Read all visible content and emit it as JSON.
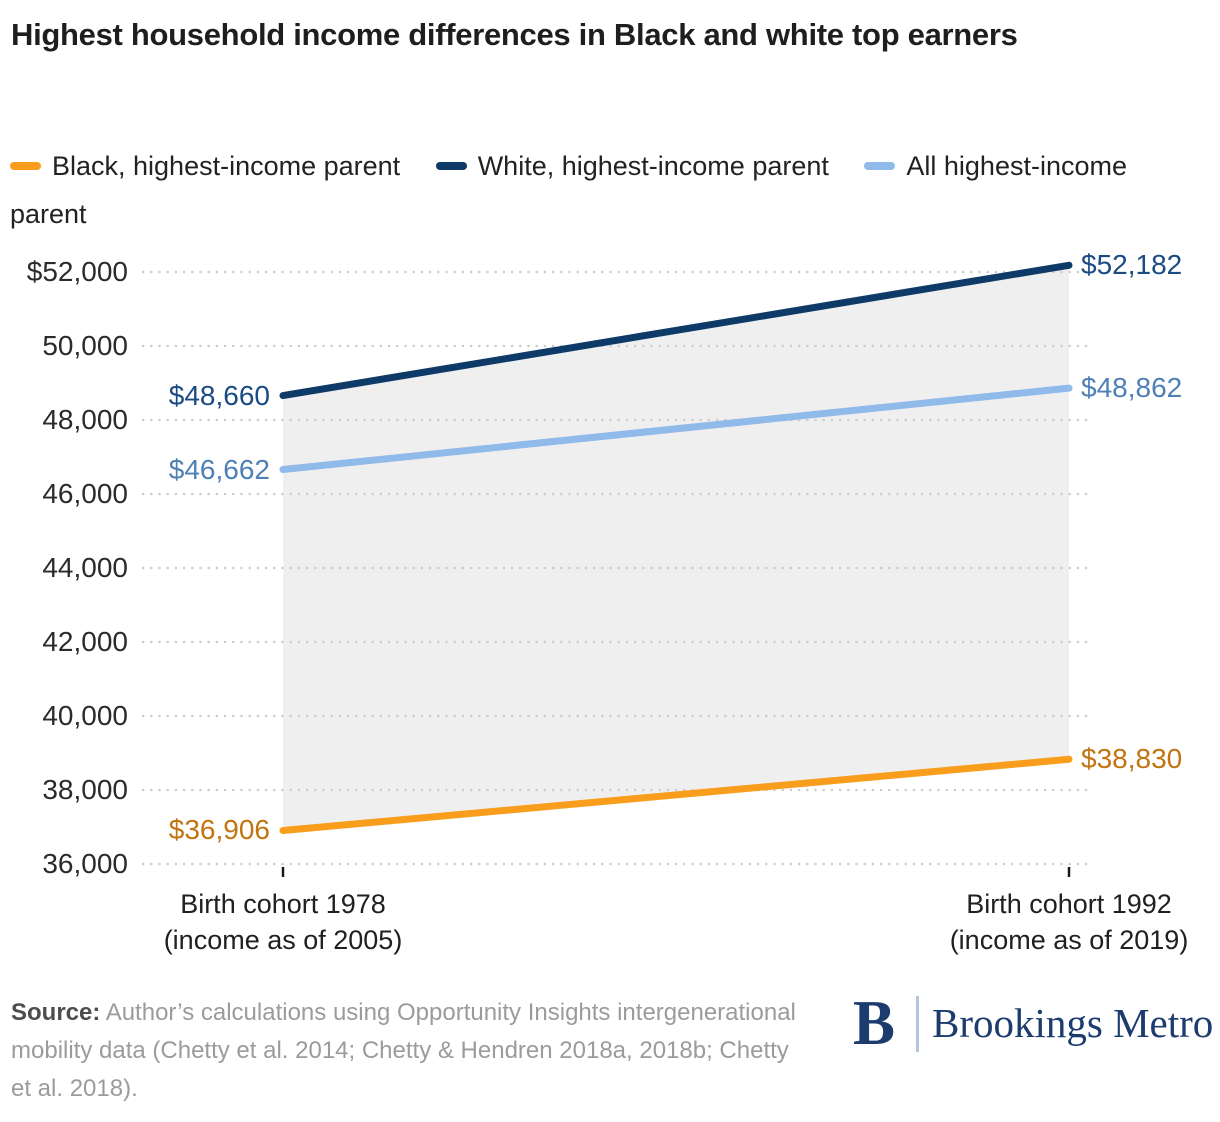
{
  "title": "Highest household income differences in Black and white top earners",
  "legend": {
    "items": [
      {
        "label": "Black, highest-income parent",
        "color": "#F99D1C"
      },
      {
        "label": "White, highest-income parent",
        "color": "#0D3A66"
      },
      {
        "label": "All highest-income parent",
        "color": "#90BAEA"
      }
    ]
  },
  "chart_data": {
    "type": "line",
    "title": "Highest household income differences in Black and white top earners",
    "x_categories": [
      [
        "Birth cohort 1978",
        "(income as of 2005)"
      ],
      [
        "Birth cohort 1992",
        "(income as of 2019)"
      ]
    ],
    "series": [
      {
        "name": "Black, highest-income parent",
        "values": [
          36906,
          38830
        ],
        "labels": [
          "$36,906",
          "$38,830"
        ],
        "color": "#F99D1C",
        "label_color": "#C2740F"
      },
      {
        "name": "White, highest-income parent",
        "values": [
          48660,
          52182
        ],
        "labels": [
          "$48,660",
          "$52,182"
        ],
        "color": "#0D3A66",
        "label_color": "#1A4B82"
      },
      {
        "name": "All highest-income parent",
        "values": [
          46662,
          48862
        ],
        "labels": [
          "$46,662",
          "$48,862"
        ],
        "color": "#90BAEA",
        "label_color": "#4E80B6"
      }
    ],
    "ylim": [
      36000,
      52000
    ],
    "yticks": [
      {
        "value": 52000,
        "label": "$52,000"
      },
      {
        "value": 50000,
        "label": "50,000"
      },
      {
        "value": 48000,
        "label": "48,000"
      },
      {
        "value": 46000,
        "label": "46,000"
      },
      {
        "value": 44000,
        "label": "44,000"
      },
      {
        "value": 42000,
        "label": "42,000"
      },
      {
        "value": 40000,
        "label": "40,000"
      },
      {
        "value": 38000,
        "label": "38,000"
      },
      {
        "value": 36000,
        "label": "36,000"
      }
    ],
    "grid": {
      "style": "dotted-horizontal",
      "color": "#CBCBCB"
    },
    "band": {
      "top": "White, highest-income parent",
      "bottom": "Black, highest-income parent",
      "color": "#EFEFEF"
    },
    "legend_position": "top"
  },
  "footer": {
    "source_prefix": "Source:",
    "source_text": " Author’s calculations using Opportunity Insights intergenerational mobility data (Chetty et al. 2014; Chetty & Hendren 2018a, 2018b; Chetty et al. 2018).",
    "logo": {
      "mark": "B",
      "name": "Brookings Metro"
    }
  }
}
